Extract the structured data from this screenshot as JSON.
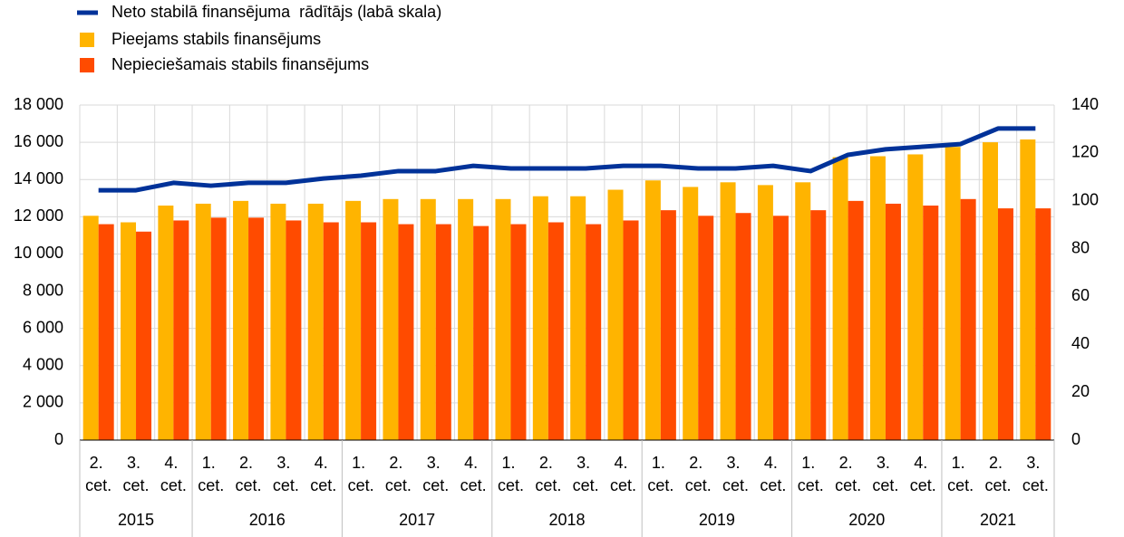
{
  "chart_data": {
    "type": "bar",
    "year_groups": [
      {
        "label": "2015",
        "categories": [
          "2. cet.",
          "3. cet.",
          "4. cet."
        ]
      },
      {
        "label": "2016",
        "categories": [
          "1. cet.",
          "2. cet.",
          "3. cet.",
          "4. cet."
        ]
      },
      {
        "label": "2017",
        "categories": [
          "1. cet.",
          "2. cet.",
          "3. cet.",
          "4. cet."
        ]
      },
      {
        "label": "2018",
        "categories": [
          "1. cet.",
          "2. cet.",
          "3. cet.",
          "4. cet."
        ]
      },
      {
        "label": "2019",
        "categories": [
          "1. cet.",
          "2. cet.",
          "3. cet.",
          "4. cet."
        ]
      },
      {
        "label": "2020",
        "categories": [
          "1. cet.",
          "2. cet.",
          "3. cet.",
          "4. cet."
        ]
      },
      {
        "label": "2021",
        "categories": [
          "1. cet.",
          "2. cet.",
          "3. cet."
        ]
      }
    ],
    "series": [
      {
        "name": "Neto stabilā finansējuma  rādītājs (labā skala)",
        "type": "line",
        "axis": "y2",
        "color": "#003299",
        "values": [
          104.4,
          104.4,
          107.5,
          106.3,
          107.5,
          107.5,
          109.3,
          110.5,
          112.4,
          112.4,
          114.6,
          113.5,
          113.5,
          113.5,
          114.6,
          114.6,
          113.5,
          113.5,
          114.6,
          112.4,
          119.2,
          121.5,
          122.6,
          123.7,
          130.2,
          130.2
        ]
      },
      {
        "name": "Pieejams stabils finansējums",
        "type": "bar",
        "color": "#ffb400",
        "values": [
          12050,
          11700,
          12600,
          12700,
          12850,
          12700,
          12700,
          12850,
          12950,
          12950,
          12950,
          12950,
          13100,
          13100,
          13450,
          13950,
          13600,
          13850,
          13700,
          13850,
          15200,
          15250,
          15350,
          15750,
          16000,
          16150
        ]
      },
      {
        "name": "Nepieciešamais stabils finansējums",
        "type": "bar",
        "color": "#ff4b00",
        "values": [
          11600,
          11200,
          11800,
          11950,
          11950,
          11800,
          11700,
          11700,
          11600,
          11600,
          11500,
          11600,
          11700,
          11600,
          11800,
          12350,
          12050,
          12200,
          12050,
          12350,
          12850,
          12700,
          12600,
          12950,
          12450,
          12450
        ]
      }
    ],
    "ylim": [
      0,
      18000
    ],
    "yticks": [
      0,
      {
        "value": 2000,
        "label": "2 000"
      },
      {
        "value": 4000,
        "label": "4 000"
      },
      {
        "value": 6000,
        "label": "6 000"
      },
      {
        "value": 8000,
        "label": "8 000"
      },
      {
        "value": 10000,
        "label": "10 000"
      },
      {
        "value": 12000,
        "label": "12 000"
      },
      {
        "value": 14000,
        "label": "14 000"
      },
      {
        "value": 16000,
        "label": "16 000"
      },
      {
        "value": 18000,
        "label": "18 000"
      }
    ],
    "y2lim": [
      0,
      140
    ],
    "y2ticks": [
      0,
      20,
      40,
      60,
      80,
      100,
      120,
      140
    ],
    "grid": true
  }
}
